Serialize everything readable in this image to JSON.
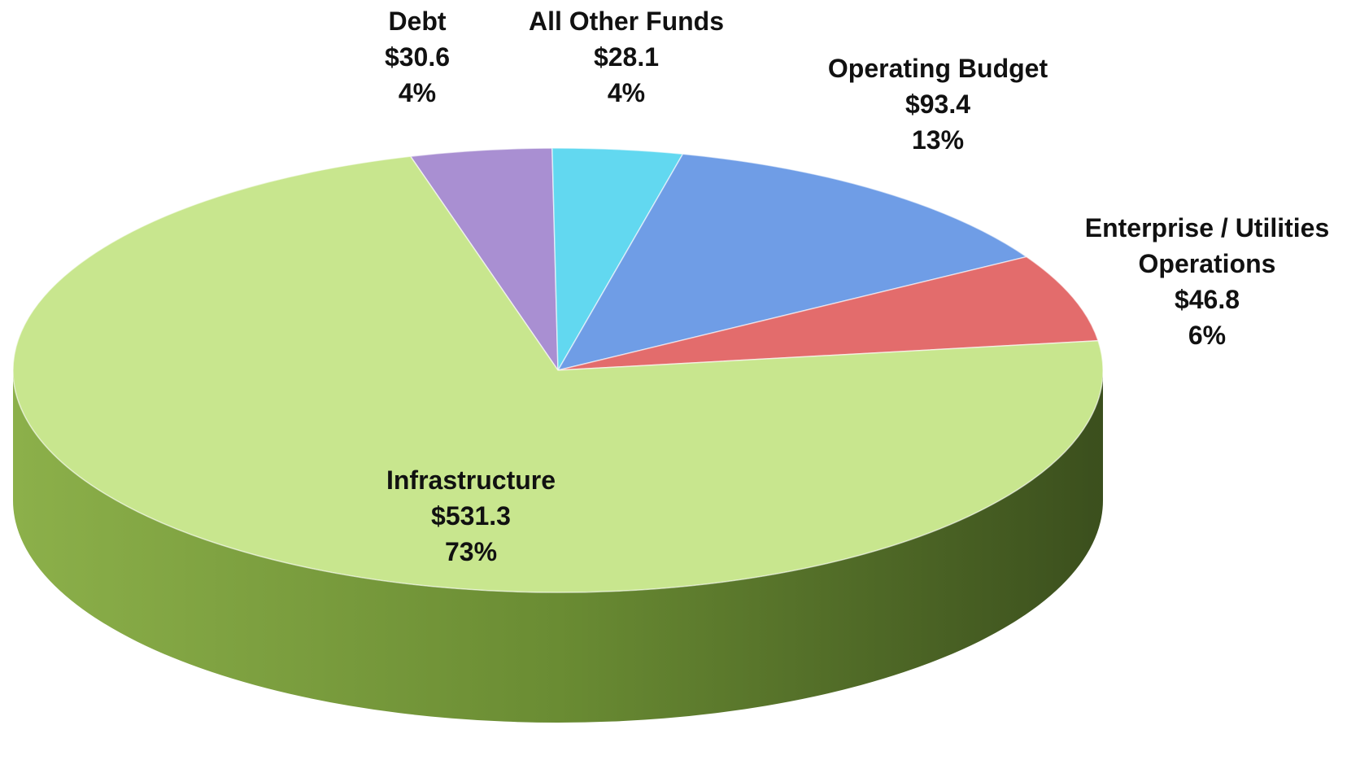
{
  "chart_data": {
    "type": "pie3d",
    "categories": [
      "Debt",
      "All Other Funds",
      "Operating Budget",
      "Enterprise / Utilities Operations",
      "Infrastructure"
    ],
    "values": [
      30.6,
      28.1,
      93.4,
      46.8,
      531.3
    ],
    "value_labels": [
      "$30.6",
      "$28.1",
      "$93.4",
      "$46.8",
      "$531.3"
    ],
    "percent_labels": [
      "4%",
      "4%",
      "13%",
      "6%",
      "73%"
    ],
    "colors": [
      "#a98fd2",
      "#62d8f0",
      "#6f9de6",
      "#e36c6c",
      "#c8e68e"
    ]
  }
}
